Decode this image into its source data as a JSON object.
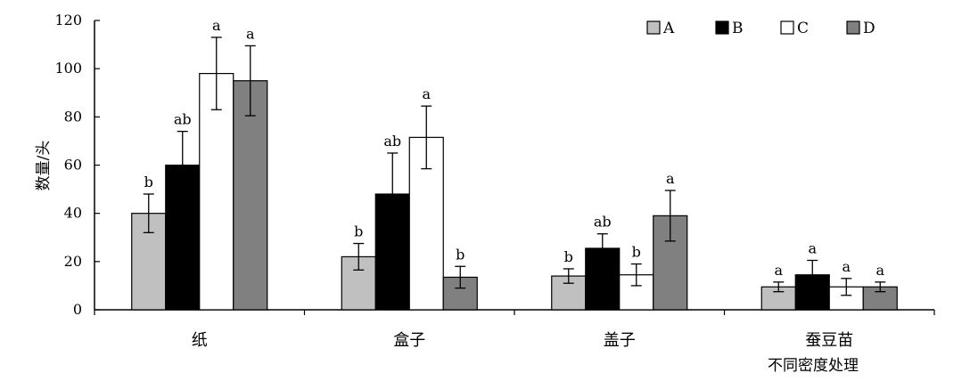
{
  "chart_data": {
    "type": "bar",
    "ylabel": "数量/头",
    "xlabel": "不同密度处理",
    "ylim": [
      0,
      120
    ],
    "yticks": [
      0,
      20,
      40,
      60,
      80,
      100,
      120
    ],
    "grid": false,
    "legend_position": "top-right",
    "categories": [
      "纸",
      "盒子",
      "盖子",
      "蚕豆苗"
    ],
    "series": [
      {
        "name": "A",
        "color": "#c0c0c0",
        "values": [
          40,
          22,
          14,
          9.5
        ],
        "errors": [
          8,
          5.5,
          3,
          2
        ],
        "significance": [
          "b",
          "b",
          "b",
          "a"
        ]
      },
      {
        "name": "B",
        "color": "#000000",
        "values": [
          60,
          48,
          25.5,
          14.5
        ],
        "errors": [
          14,
          17,
          6,
          6
        ],
        "significance": [
          "ab",
          "ab",
          "ab",
          "a"
        ]
      },
      {
        "name": "C",
        "color": "#ffffff",
        "values": [
          98,
          71.5,
          14.5,
          9.5
        ],
        "errors": [
          15,
          13,
          4.5,
          3.5
        ],
        "significance": [
          "a",
          "a",
          "b",
          "a"
        ]
      },
      {
        "name": "D",
        "color": "#808080",
        "values": [
          95,
          13.5,
          39,
          9.5
        ],
        "errors": [
          14.5,
          4.5,
          10.5,
          2
        ],
        "significance": [
          "a",
          "b",
          "a",
          "a"
        ]
      }
    ]
  }
}
